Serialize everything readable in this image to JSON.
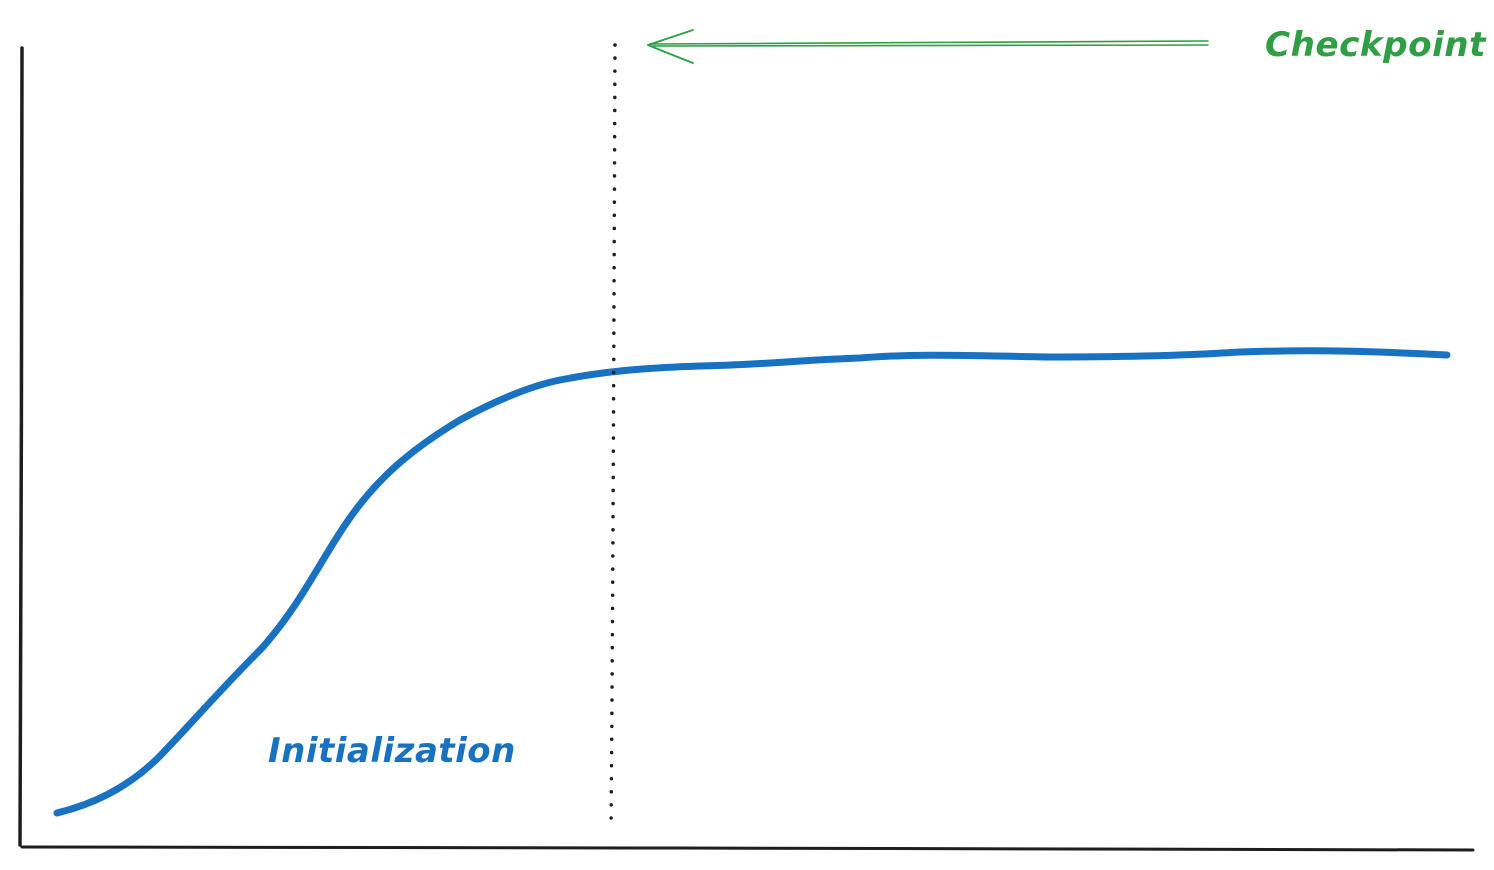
{
  "labels": {
    "checkpoint": "Checkpoint",
    "initialization": "Initialization"
  },
  "colors": {
    "background": "#ffffff",
    "axis": "#1e1e1e",
    "curve": "#1971c2",
    "checkpoint_marker": "#1e1e1e",
    "checkpoint_arrow": "#2f9e44",
    "checkpoint_label": "#2f9e44",
    "initialization_label": "#1971c2"
  }
}
